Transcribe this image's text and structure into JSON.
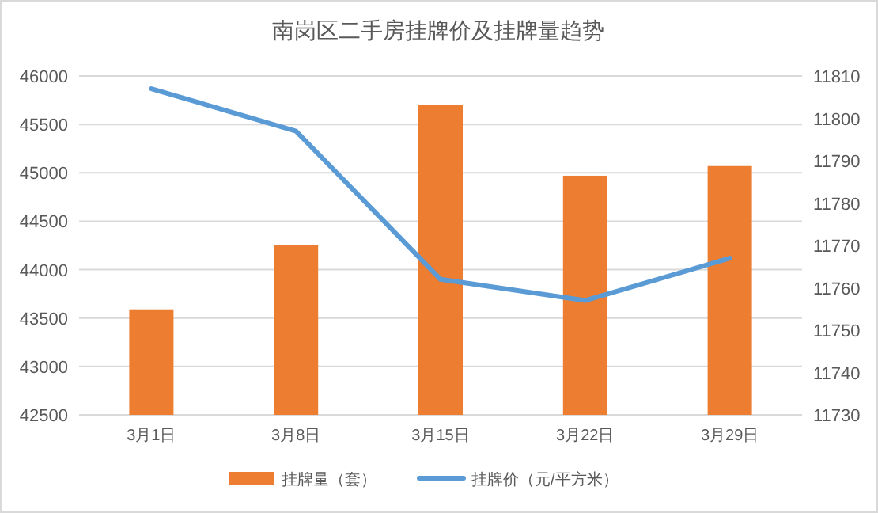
{
  "chart_data": {
    "type": "bar",
    "title": "南岗区二手房挂牌价及挂牌量趋势",
    "categories": [
      "3月1日",
      "3月8日",
      "3月15日",
      "3月22日",
      "3月29日"
    ],
    "series": [
      {
        "name": "挂牌量（套）",
        "color": "#ed7d31",
        "values": [
          43590,
          44250,
          45700,
          44970,
          45070
        ]
      },
      {
        "name": "挂牌价（元/平方米）",
        "type": "line",
        "axis": "y2",
        "color": "#5b9bd5",
        "values": [
          11807,
          11797,
          11762,
          11757,
          11767
        ]
      }
    ],
    "ylim": [
      42500,
      46000
    ],
    "yticks": [
      42500,
      43000,
      43500,
      44000,
      44500,
      45000,
      45500,
      46000
    ],
    "y2lim": [
      11730,
      11810
    ],
    "y2ticks": [
      11730,
      11740,
      11750,
      11760,
      11770,
      11780,
      11790,
      11800,
      11810
    ],
    "grid": "y",
    "legend": "bottom"
  }
}
